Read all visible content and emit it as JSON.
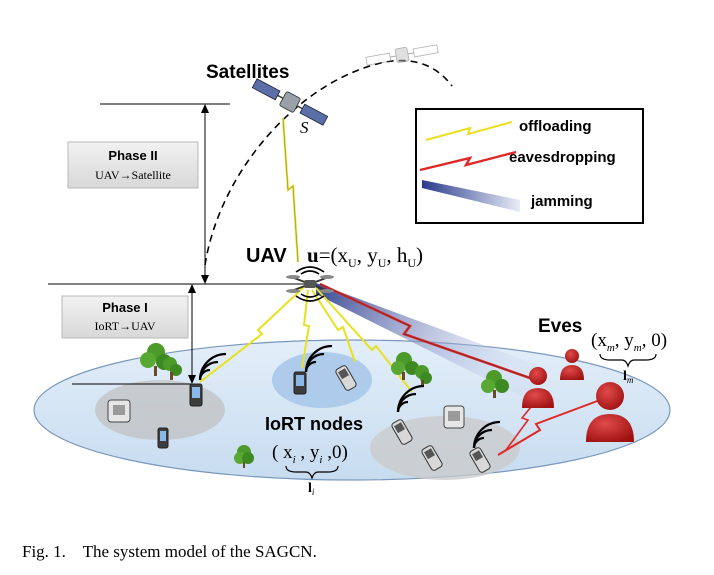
{
  "labels": {
    "satellites": "Satellites",
    "satellite_symbol": "S",
    "uav": "UAV",
    "uav_coord_prefix": "u",
    "uav_coord_body": "=(x",
    "uav_coord_sub_x": "U",
    "uav_coord_mid1": ", y",
    "uav_coord_sub_y": "U",
    "uav_coord_mid2": ", h",
    "uav_coord_sub_h": "U",
    "uav_coord_end": ")",
    "iort_nodes": "IoRT nodes",
    "iort_coord_open": "( x",
    "iort_coord_sub_x": "i",
    "iort_coord_mid": " , y",
    "iort_coord_sub_y": "i",
    "iort_coord_end": " ,0)",
    "iort_brace_label": "l",
    "iort_brace_sub": "i",
    "eves": "Eves",
    "eves_coord_open": "(x",
    "eves_coord_sub_x": "m",
    "eves_coord_mid": ", y",
    "eves_coord_sub_y": "m",
    "eves_coord_end": ", 0)",
    "eves_brace_label": "l",
    "eves_brace_sub": "m"
  },
  "phases": [
    {
      "title": "Phase II",
      "subtitle": "UAV→Satellite"
    },
    {
      "title": "Phase I",
      "subtitle": "IoRT→UAV"
    }
  ],
  "legend": [
    {
      "label": "offloading",
      "color": "#e8e020"
    },
    {
      "label": "eavesdropping",
      "color": "#e02828"
    },
    {
      "label": "jamming",
      "color": "#4a5aa8"
    }
  ],
  "caption": "Fig. 1.    The system model of the SAGCN."
}
